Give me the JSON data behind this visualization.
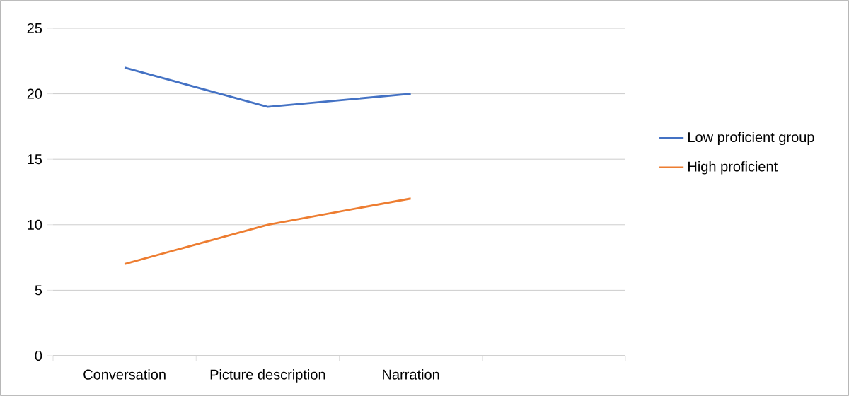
{
  "chart_data": {
    "type": "line",
    "categories": [
      "Conversation",
      "Picture description",
      "Narration",
      null
    ],
    "series": [
      {
        "name": "Low proficient group",
        "color": "#4472c4",
        "values": [
          22,
          19,
          20,
          null
        ]
      },
      {
        "name": "High proficient",
        "color": "#ed7d31",
        "values": [
          7,
          10,
          12,
          null
        ]
      }
    ],
    "ylim": [
      0,
      25
    ],
    "yticks": [
      0,
      5,
      10,
      15,
      20,
      25
    ],
    "grid": "y",
    "legend": "right"
  }
}
